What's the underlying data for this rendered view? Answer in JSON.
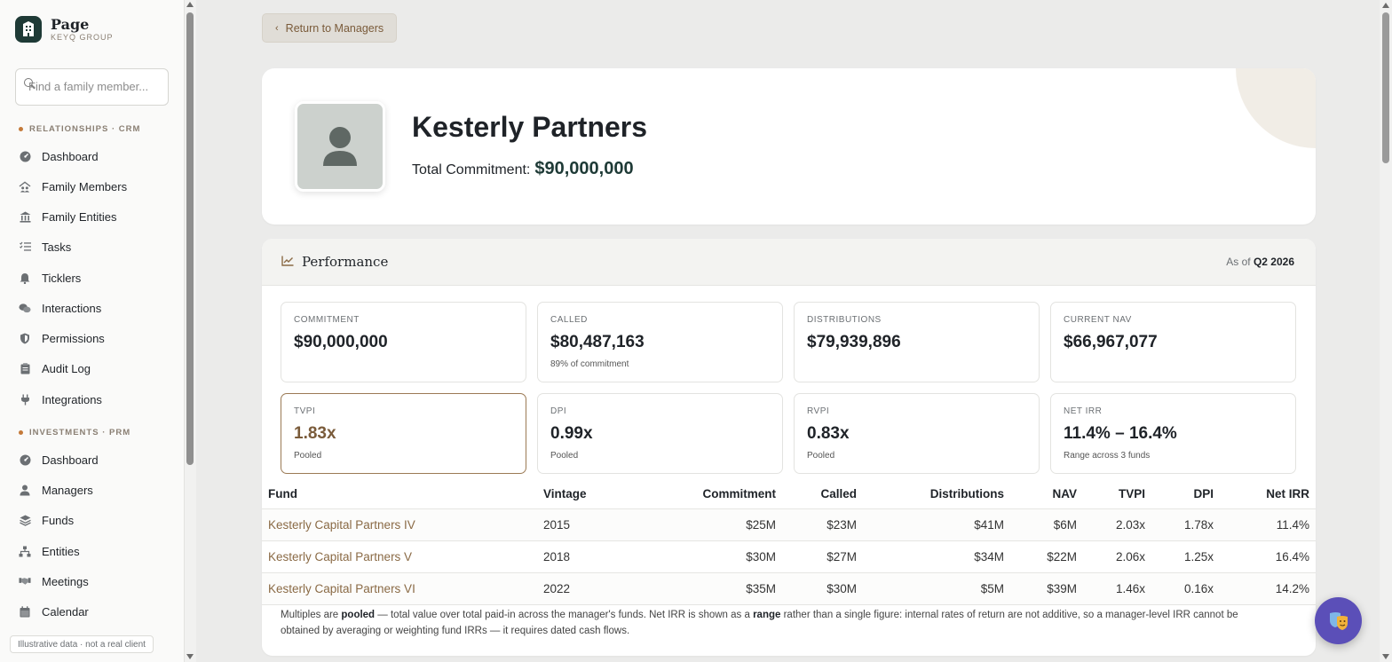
{
  "brand": {
    "name": "Page",
    "subtitle": "KEYQ GROUP"
  },
  "search": {
    "placeholder": "Find a family member..."
  },
  "sidebar": {
    "sections": [
      {
        "label": "RELATIONSHIPS · CRM",
        "items": [
          {
            "label": "Dashboard",
            "icon": "dashboard-icon"
          },
          {
            "label": "Family Members",
            "icon": "family-icon"
          },
          {
            "label": "Family Entities",
            "icon": "bank-icon"
          },
          {
            "label": "Tasks",
            "icon": "tasks-icon"
          },
          {
            "label": "Ticklers",
            "icon": "bell-icon"
          },
          {
            "label": "Interactions",
            "icon": "chat-icon"
          },
          {
            "label": "Permissions",
            "icon": "shield-icon"
          },
          {
            "label": "Audit Log",
            "icon": "clipboard-icon"
          },
          {
            "label": "Integrations",
            "icon": "plug-icon"
          }
        ]
      },
      {
        "label": "INVESTMENTS · PRM",
        "items": [
          {
            "label": "Dashboard",
            "icon": "dashboard-icon"
          },
          {
            "label": "Managers",
            "icon": "user-icon"
          },
          {
            "label": "Funds",
            "icon": "layers-icon"
          },
          {
            "label": "Entities",
            "icon": "org-chart-icon"
          },
          {
            "label": "Meetings",
            "icon": "handshake-icon"
          },
          {
            "label": "Calendar",
            "icon": "calendar-icon"
          }
        ]
      }
    ],
    "footnote": "Illustrative data · not a real client"
  },
  "back_button": {
    "label": "Return to Managers"
  },
  "manager": {
    "name": "Kesterly Partners",
    "commitment_label": "Total Commitment:",
    "commitment_value": "$90,000,000"
  },
  "performance": {
    "title": "Performance",
    "as_of_label": "As of",
    "as_of_value": "Q2 2026",
    "kpis": [
      {
        "label": "COMMITMENT",
        "value": "$90,000,000",
        "sub": ""
      },
      {
        "label": "CALLED",
        "value": "$80,487,163",
        "sub": "89% of commitment"
      },
      {
        "label": "DISTRIBUTIONS",
        "value": "$79,939,896",
        "sub": ""
      },
      {
        "label": "CURRENT NAV",
        "value": "$66,967,077",
        "sub": ""
      },
      {
        "label": "TVPI",
        "value": "1.83x",
        "sub": "Pooled"
      },
      {
        "label": "DPI",
        "value": "0.99x",
        "sub": "Pooled"
      },
      {
        "label": "RVPI",
        "value": "0.83x",
        "sub": "Pooled"
      },
      {
        "label": "NET IRR",
        "value": "11.4% – 16.4%",
        "sub": "Range across 3 funds"
      }
    ],
    "table": {
      "headers": [
        "Fund",
        "Vintage",
        "Commitment",
        "Called",
        "Distributions",
        "NAV",
        "TVPI",
        "DPI",
        "Net IRR"
      ],
      "rows": [
        [
          "Kesterly Capital Partners IV",
          "2015",
          "$25M",
          "$23M",
          "$41M",
          "$6M",
          "2.03x",
          "1.78x",
          "11.4%"
        ],
        [
          "Kesterly Capital Partners V",
          "2018",
          "$30M",
          "$27M",
          "$34M",
          "$22M",
          "2.06x",
          "1.25x",
          "16.4%"
        ],
        [
          "Kesterly Capital Partners VI",
          "2022",
          "$35M",
          "$30M",
          "$5M",
          "$39M",
          "1.46x",
          "0.16x",
          "14.2%"
        ]
      ]
    },
    "note": {
      "p1": "Multiples are ",
      "b1": "pooled",
      "p2": " — total value over total paid-in across the manager's funds. Net IRR is shown as a ",
      "b2": "range",
      "p3": " rather than a single figure: internal rates of return are not additive, so a manager-level IRR cannot be obtained by averaging or weighting fund IRRs — it requires dated cash flows."
    }
  },
  "colors": {
    "accent": "#8a6a45",
    "brand": "#1e3a36",
    "fab": "#5b4fb8"
  }
}
